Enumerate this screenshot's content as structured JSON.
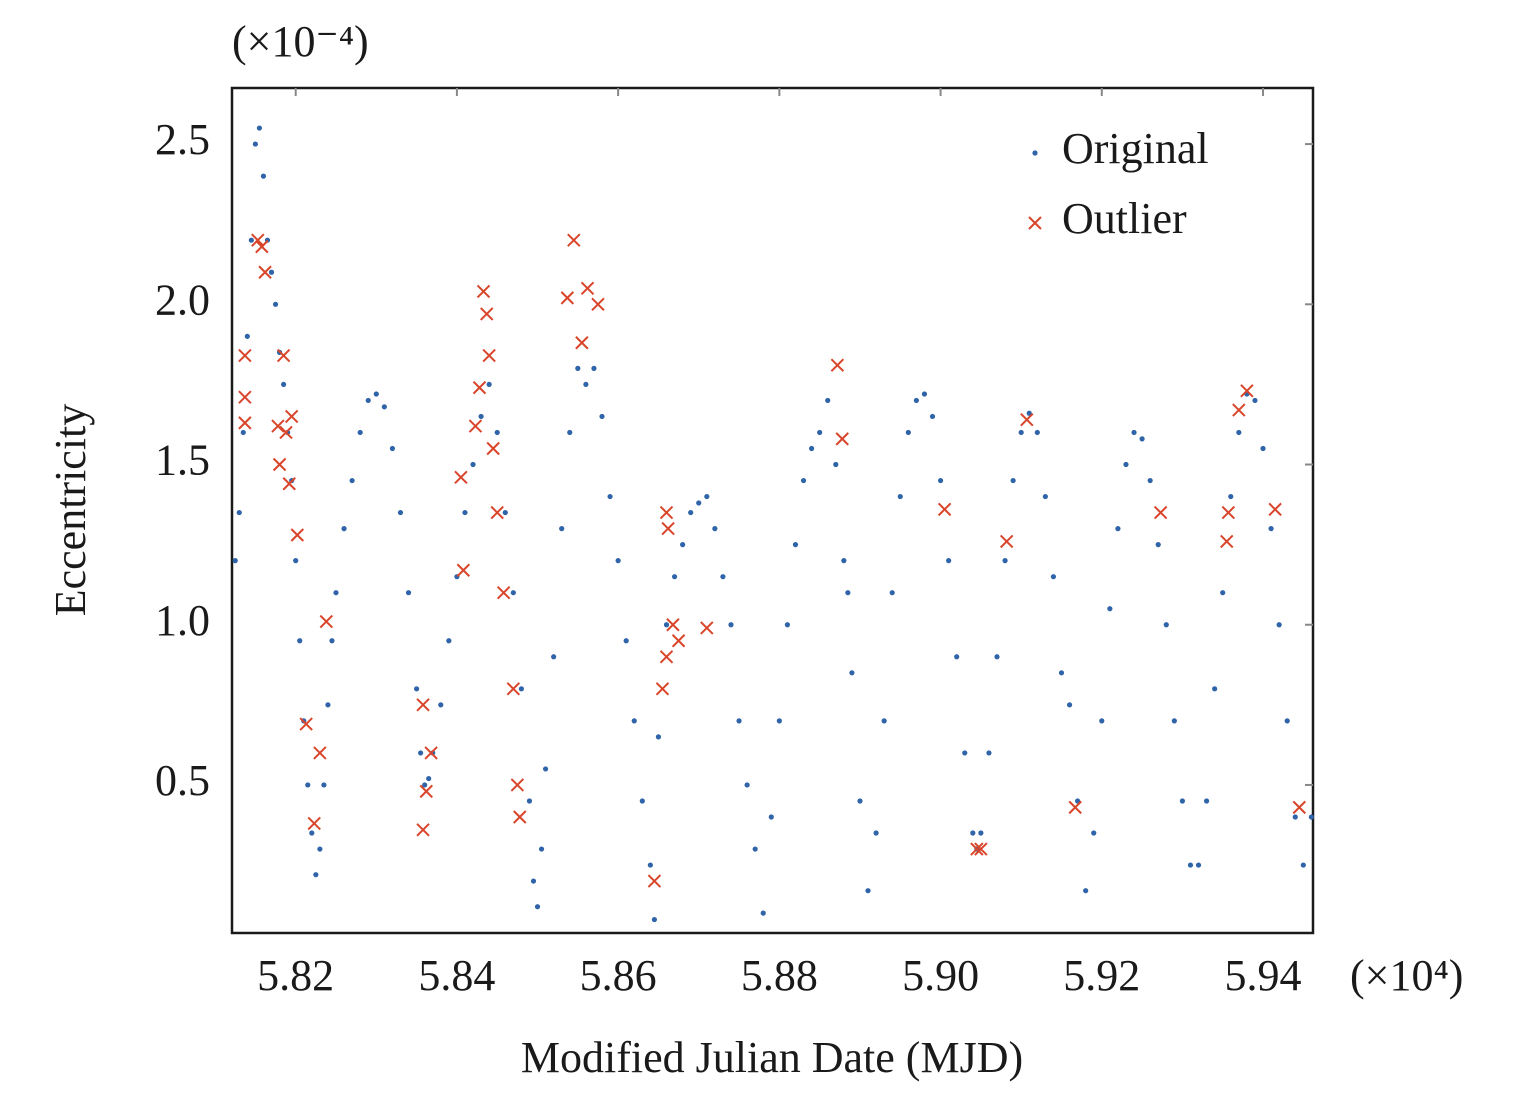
{
  "chart_data": {
    "type": "scatter",
    "x_label": "Modified Julian Date (MJD)",
    "y_label": "Eccentricity",
    "x_multiplier": "(×10⁴)",
    "y_multiplier": "(×10⁻⁴)",
    "xlim": [
      5.8121,
      5.9462
    ],
    "ylim": [
      0.038,
      2.675
    ],
    "xticks": [
      5.82,
      5.84,
      5.86,
      5.88,
      {
        "value": 5.9,
        "label": "5.90"
      },
      5.92,
      5.94
    ],
    "yticks": [
      0.5,
      {
        "value": 1,
        "label": "1.0"
      },
      1.5,
      {
        "value": 2,
        "label": "2.0"
      },
      2.5
    ],
    "legend": "upper right",
    "series": [
      {
        "name": "Original",
        "color": "#2f64a8",
        "marker": "dot",
        "x": [
          5.8125,
          5.813,
          5.8135,
          5.814,
          5.8145,
          5.815,
          5.8155,
          5.816,
          5.8165,
          5.817,
          5.8175,
          5.818,
          5.8185,
          5.819,
          5.8195,
          5.82,
          5.8205,
          5.821,
          5.8215,
          5.822,
          5.8225,
          5.823,
          5.8235,
          5.824,
          5.8245,
          5.825,
          5.826,
          5.827,
          5.828,
          5.829,
          5.83,
          5.831,
          5.832,
          5.833,
          5.834,
          5.835,
          5.8355,
          5.836,
          5.8365,
          5.837,
          5.838,
          5.839,
          5.84,
          5.841,
          5.842,
          5.843,
          5.844,
          5.845,
          5.846,
          5.847,
          5.848,
          5.849,
          5.8495,
          5.85,
          5.8505,
          5.851,
          5.852,
          5.853,
          5.854,
          5.855,
          5.856,
          5.857,
          5.858,
          5.859,
          5.86,
          5.861,
          5.862,
          5.863,
          5.864,
          5.8645,
          5.865,
          5.866,
          5.867,
          5.868,
          5.869,
          5.87,
          5.871,
          5.872,
          5.873,
          5.874,
          5.875,
          5.876,
          5.877,
          5.878,
          5.879,
          5.88,
          5.881,
          5.882,
          5.883,
          5.884,
          5.885,
          5.886,
          5.887,
          5.888,
          5.8885,
          5.889,
          5.89,
          5.891,
          5.892,
          5.893,
          5.894,
          5.895,
          5.896,
          5.897,
          5.898,
          5.899,
          5.9,
          5.901,
          5.902,
          5.903,
          5.904,
          5.9045,
          5.905,
          5.906,
          5.907,
          5.908,
          5.909,
          5.91,
          5.911,
          5.912,
          5.913,
          5.914,
          5.915,
          5.916,
          5.917,
          5.918,
          5.919,
          5.92,
          5.921,
          5.922,
          5.923,
          5.924,
          5.925,
          5.926,
          5.927,
          5.928,
          5.929,
          5.93,
          5.931,
          5.932,
          5.933,
          5.934,
          5.935,
          5.936,
          5.937,
          5.938,
          5.939,
          5.94,
          5.941,
          5.942,
          5.943,
          5.944,
          5.945,
          5.946
        ],
        "values": [
          1.2,
          1.35,
          1.6,
          1.9,
          2.2,
          2.5,
          2.55,
          2.4,
          2.2,
          2.1,
          2.0,
          1.85,
          1.75,
          1.6,
          1.45,
          1.2,
          0.95,
          0.7,
          0.5,
          0.35,
          0.22,
          0.3,
          0.5,
          0.75,
          0.95,
          1.1,
          1.3,
          1.45,
          1.6,
          1.7,
          1.72,
          1.68,
          1.55,
          1.35,
          1.1,
          0.8,
          0.6,
          0.5,
          0.52,
          0.6,
          0.75,
          0.95,
          1.15,
          1.35,
          1.5,
          1.65,
          1.75,
          1.6,
          1.35,
          1.1,
          0.8,
          0.45,
          0.2,
          0.12,
          0.3,
          0.55,
          0.9,
          1.3,
          1.6,
          1.8,
          1.75,
          1.8,
          1.65,
          1.4,
          1.2,
          0.95,
          0.7,
          0.45,
          0.25,
          0.08,
          0.65,
          1.0,
          1.15,
          1.25,
          1.35,
          1.38,
          1.4,
          1.3,
          1.15,
          1.0,
          0.7,
          0.5,
          0.3,
          0.1,
          0.4,
          0.7,
          1.0,
          1.25,
          1.45,
          1.55,
          1.6,
          1.7,
          1.5,
          1.2,
          1.1,
          0.85,
          0.45,
          0.17,
          0.35,
          0.7,
          1.1,
          1.4,
          1.6,
          1.7,
          1.72,
          1.65,
          1.45,
          1.2,
          0.9,
          0.6,
          0.35,
          0.3,
          0.35,
          0.6,
          0.9,
          1.2,
          1.45,
          1.6,
          1.66,
          1.6,
          1.4,
          1.15,
          0.85,
          0.75,
          0.45,
          0.17,
          0.35,
          0.7,
          1.05,
          1.3,
          1.5,
          1.6,
          1.58,
          1.45,
          1.25,
          1.0,
          0.7,
          0.45,
          0.25,
          0.25,
          0.45,
          0.8,
          1.1,
          1.4,
          1.6,
          1.72,
          1.7,
          1.55,
          1.3,
          1.0,
          0.7,
          0.4,
          0.25,
          0.4
        ]
      },
      {
        "name": "Outlier",
        "color": "#d9452b",
        "marker": "x",
        "x": [
          5.8137,
          5.8137,
          5.8137,
          5.8153,
          5.8158,
          5.8162,
          5.8178,
          5.818,
          5.8185,
          5.8188,
          5.8192,
          5.8195,
          5.8202,
          5.8213,
          5.8223,
          5.823,
          5.8238,
          5.8358,
          5.8358,
          5.8362,
          5.8368,
          5.8405,
          5.8408,
          5.8423,
          5.8428,
          5.8433,
          5.8437,
          5.844,
          5.8445,
          5.845,
          5.8458,
          5.847,
          5.8475,
          5.8478,
          5.8537,
          5.8545,
          5.8555,
          5.8562,
          5.8575,
          5.8645,
          5.8655,
          5.866,
          5.8662,
          5.8668,
          5.866,
          5.8675,
          5.871,
          5.8872,
          5.8878,
          5.9005,
          5.9045,
          5.905,
          5.9082,
          5.9107,
          5.9167,
          5.9273,
          5.9355,
          5.9357,
          5.937,
          5.938,
          5.9415,
          5.9445
        ],
        "values": [
          1.84,
          1.71,
          1.63,
          2.2,
          2.18,
          2.1,
          1.62,
          1.5,
          1.84,
          1.6,
          1.44,
          1.65,
          1.28,
          0.69,
          0.38,
          0.6,
          1.01,
          0.75,
          0.36,
          0.48,
          0.6,
          1.46,
          1.17,
          1.62,
          1.74,
          2.04,
          1.97,
          1.84,
          1.55,
          1.35,
          1.1,
          0.8,
          0.5,
          0.4,
          2.02,
          2.2,
          1.88,
          2.05,
          2.0,
          0.2,
          0.8,
          1.35,
          1.3,
          1.0,
          0.9,
          0.95,
          0.99,
          1.81,
          1.58,
          1.36,
          0.3,
          0.3,
          1.26,
          1.64,
          0.43,
          1.35,
          1.26,
          1.35,
          1.67,
          1.73,
          1.36,
          0.43
        ]
      }
    ]
  }
}
